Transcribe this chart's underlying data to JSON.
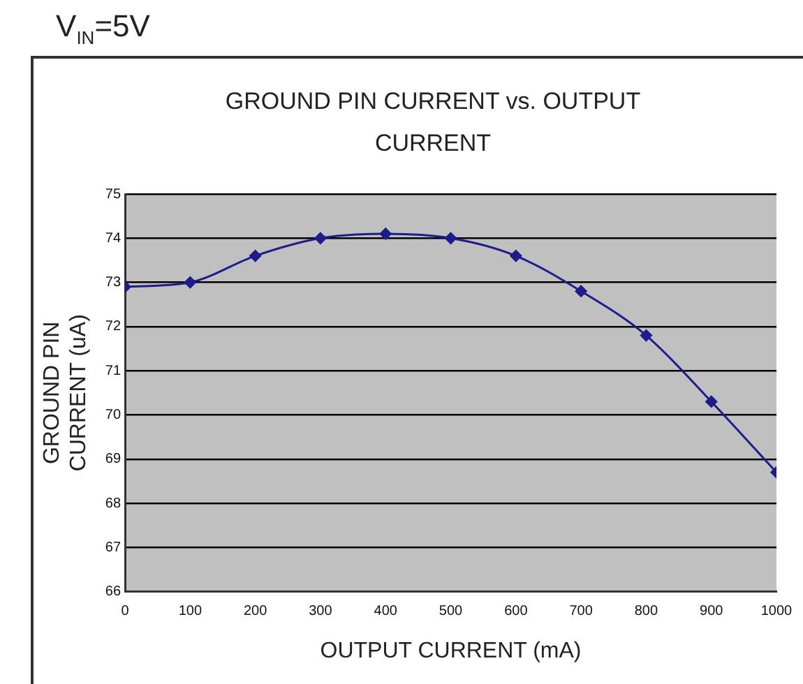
{
  "chart_data": {
    "type": "line",
    "title": "GROUND PIN CURRENT vs. OUTPUT CURRENT",
    "xlabel": "OUTPUT CURRENT (mA)",
    "ylabel": "GROUND PIN CURRENT (uA)",
    "annotations": [
      "V$_{IN}$=5V"
    ],
    "x": [
      0,
      100,
      200,
      300,
      400,
      500,
      600,
      700,
      800,
      900,
      1000
    ],
    "series": [
      {
        "color": "#1c1c8c",
        "values": [
          72.9,
          73.0,
          73.6,
          74.0,
          74.1,
          74.0,
          73.6,
          72.8,
          71.8,
          70.3,
          68.7
        ]
      }
    ],
    "xlim": [
      0,
      1000
    ],
    "xticks": [
      0,
      100,
      200,
      300,
      400,
      500,
      600,
      700,
      800,
      900,
      1000
    ],
    "ylim": [
      66,
      75
    ],
    "yticks": [
      66,
      67,
      68,
      69,
      70,
      71,
      72,
      73,
      74,
      75
    ],
    "grid": "y",
    "legend": false,
    "marker": "diamond",
    "line_style": "solid"
  }
}
